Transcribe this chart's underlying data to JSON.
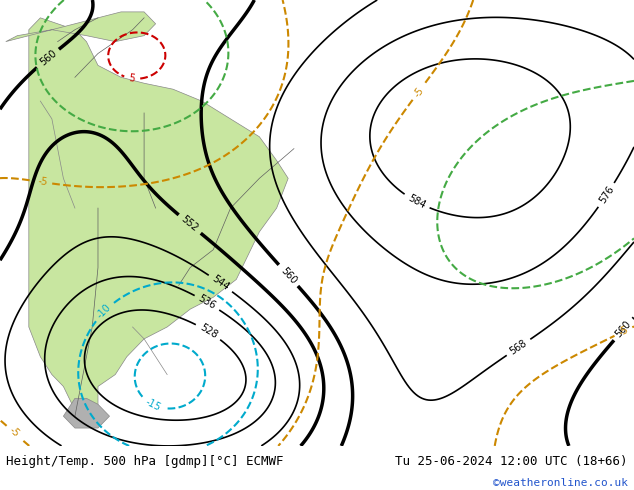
{
  "title_left": "Height/Temp. 500 hPa [gdmp][°C] ECMWF",
  "title_right": "Tu 25-06-2024 12:00 UTC (18+66)",
  "credit": "©weatheronline.co.uk",
  "background_color": "#d8d8d8",
  "land_color": "#c8e6a0",
  "ocean_color": "#d8d8d8",
  "bottom_bar_color": "#f0f0f0",
  "contour_color_black": "black",
  "contour_color_red": "#cc0000",
  "contour_color_orange": "#cc8800",
  "contour_color_cyan": "#00aacc",
  "contour_color_green": "#44aa44",
  "figsize": [
    6.34,
    4.9
  ],
  "dpi": 100,
  "title_fontsize": 9,
  "credit_fontsize": 8,
  "label_fontsize": 7
}
